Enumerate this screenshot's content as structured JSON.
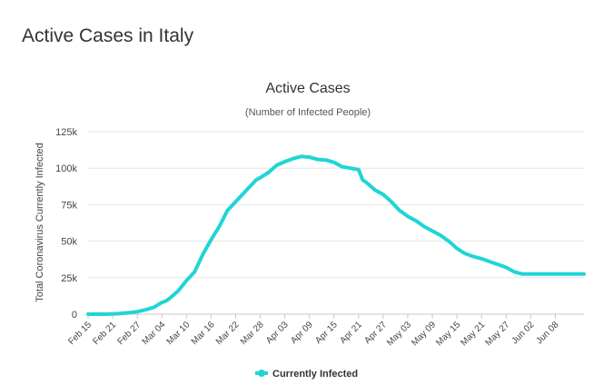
{
  "page": {
    "title": "Active Cases in Italy"
  },
  "chart_data": {
    "type": "line",
    "title": "Active Cases",
    "subtitle": "(Number of Infected People)",
    "xlabel": "",
    "ylabel": "Total Coronavirus Currently Infected",
    "ylim": [
      0,
      125000
    ],
    "yticks": [
      0,
      25000,
      50000,
      75000,
      100000,
      125000
    ],
    "ytick_labels": [
      "0",
      "25k",
      "50k",
      "75k",
      "100k",
      "125k"
    ],
    "x_start": "Feb 15",
    "xtick_labels": [
      "Feb 15",
      "Feb 21",
      "Feb 27",
      "Mar 04",
      "Mar 10",
      "Mar 16",
      "Mar 22",
      "Mar 28",
      "Apr 03",
      "Apr 09",
      "Apr 15",
      "Apr 21",
      "Apr 27",
      "May 03",
      "May 09",
      "May 15",
      "May 21",
      "May 27",
      "Jun 02",
      "Jun 08"
    ],
    "xtick_step_days": 6,
    "grid": true,
    "legend_position": "bottom-center",
    "color": "#20d5d5",
    "series": [
      {
        "name": "Currently Infected",
        "x_day_offsets": [
          0,
          2,
          4,
          6,
          7,
          8,
          10,
          12,
          14,
          16,
          18,
          19,
          20,
          22,
          24,
          26,
          28,
          30,
          32,
          34,
          36,
          38,
          40,
          41,
          42,
          44,
          46,
          48,
          50,
          52,
          54,
          56,
          58,
          60,
          62,
          64,
          66,
          67,
          68,
          70,
          72,
          74,
          76,
          78,
          80,
          82,
          84,
          86,
          88,
          90,
          92,
          94,
          96,
          98,
          100,
          102,
          104,
          106,
          108,
          110,
          112,
          114,
          116,
          118,
          119,
          120,
          121
        ],
        "values": [
          0,
          0,
          0,
          100,
          300,
          500,
          1000,
          1700,
          3000,
          4600,
          8000,
          9000,
          11000,
          16000,
          23000,
          29000,
          41000,
          51000,
          60000,
          71000,
          77000,
          83000,
          89000,
          92000,
          93500,
          97000,
          102000,
          104500,
          106500,
          108000,
          107500,
          106000,
          105600,
          104000,
          101000,
          100000,
          99000,
          92000,
          90000,
          85000,
          82000,
          77000,
          71000,
          67000,
          64000,
          60000,
          57000,
          54000,
          50000,
          45000,
          41500,
          39500,
          38000,
          36000,
          34000,
          32000,
          29000,
          27500,
          27500,
          27500,
          27500,
          27500,
          27500,
          27500,
          27500,
          27500,
          27500
        ]
      }
    ]
  }
}
